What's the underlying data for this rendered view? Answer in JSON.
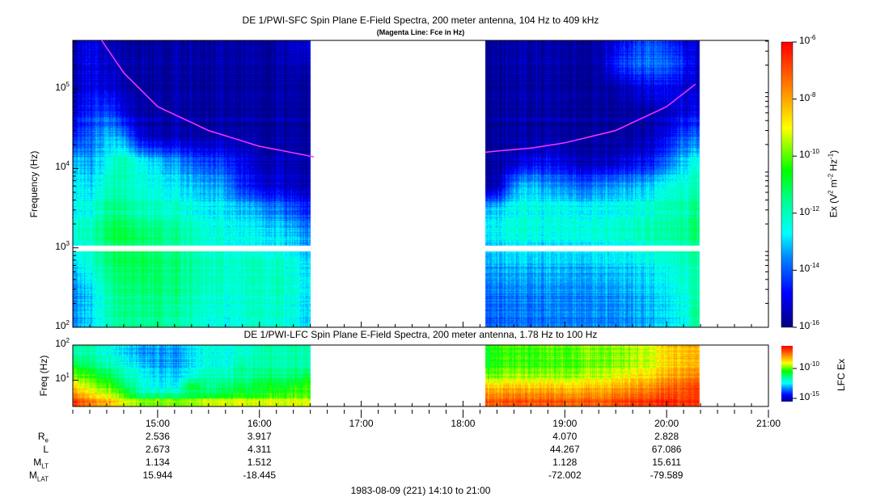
{
  "chart_data": [
    {
      "type": "heatmap",
      "title": "DE 1/PWI-SFC  Spin Plane E-Field Spectra, 200 meter antenna, 104 Hz to 409 kHz",
      "subtitle": "(Magenta Line: Fce in Hz)",
      "ylabel": "Frequency (Hz)",
      "yscale": "log",
      "ylim": [
        100,
        409000
      ],
      "yticks": [
        "10^2",
        "10^3",
        "10^4",
        "10^5"
      ],
      "colorbar": {
        "label": "Ex (V^2 m^-2 Hz^-1)",
        "scale": "log",
        "range": [
          -16,
          -6
        ],
        "ticks": [
          "10^-6",
          "10^-8",
          "10^-10",
          "10^-12",
          "10^-14",
          "10^-16"
        ]
      },
      "data_gaps": [
        [
          "16:32",
          "18:13"
        ],
        [
          "20:19",
          "21:00"
        ]
      ],
      "freq_rows_hz": [
        150,
        300,
        600,
        1500,
        3000,
        6000,
        12000,
        25000,
        50000,
        100000,
        200000,
        400000
      ],
      "segments": [
        {
          "times": [
            "14:10",
            "14:20",
            "14:30",
            "14:40",
            "14:50",
            "15:00",
            "15:10",
            "15:20",
            "15:30",
            "15:40",
            "15:50",
            "16:00",
            "16:10",
            "16:20",
            "16:30"
          ],
          "log10_values": [
            [
              -13.5,
              -13,
              -12,
              -11.5,
              -11.5,
              -11.5,
              -11.8,
              -12,
              -12.3,
              -12.5,
              -12.3,
              -12,
              -12.2,
              -12.5,
              -13
            ],
            [
              -13.5,
              -13,
              -11.8,
              -11.3,
              -11.2,
              -11.3,
              -11.5,
              -11.8,
              -12,
              -12.3,
              -12.2,
              -12,
              -12,
              -12.3,
              -12.8
            ],
            [
              -13,
              -12.5,
              -11.5,
              -11.2,
              -11,
              -11.3,
              -11.5,
              -11.8,
              -12,
              -12.3,
              -12.2,
              -12,
              -12.2,
              -12.5,
              -13
            ],
            [
              -12,
              -12,
              -11,
              -10.8,
              -11,
              -11.3,
              -11.6,
              -11.9,
              -12.2,
              -12.4,
              -12.5,
              -12.6,
              -12.8,
              -13,
              -13.5
            ],
            [
              -12.5,
              -12.5,
              -11.5,
              -11.5,
              -11.8,
              -12,
              -12.2,
              -12.4,
              -12.6,
              -12.8,
              -13,
              -13.2,
              -13.6,
              -14,
              -14.5
            ],
            [
              -12.5,
              -13,
              -12,
              -12,
              -12.2,
              -12.5,
              -12.8,
              -13,
              -13.2,
              -13.5,
              -14.5,
              -15,
              -15.2,
              -15.4,
              -15.5
            ],
            [
              -13,
              -13.5,
              -12.5,
              -11.8,
              -12.5,
              -13,
              -13.5,
              -14,
              -14.2,
              -14.5,
              -15,
              -15.5,
              -15.5,
              -15.6,
              -15.6
            ],
            [
              -14.5,
              -14,
              -13,
              -13.5,
              -15,
              -15.5,
              -15.5,
              -15.6,
              -15.6,
              -15.6,
              -15.6,
              -15.7,
              -15.7,
              -15.7,
              -15.7
            ],
            [
              -15,
              -14.5,
              -14,
              -15,
              -15.5,
              -15.6,
              -15.7,
              -15.7,
              -15.7,
              -15.7,
              -15.7,
              -15.7,
              -15.7,
              -15.7,
              -15.7
            ],
            [
              -15.5,
              -15,
              -15,
              -15.5,
              -15.6,
              -15.7,
              -15.7,
              -15.7,
              -15.7,
              -15.7,
              -15.7,
              -15.7,
              -15.7,
              -15.7,
              -15.7
            ],
            [
              -15.5,
              -15,
              -15.3,
              -15.6,
              -15.5,
              -15.7,
              -15.7,
              -15.7,
              -15.7,
              -15.7,
              -15.7,
              -15.7,
              -15.7,
              -15.6,
              -15.5
            ],
            [
              -15.5,
              -15,
              -15.5,
              -15.7,
              -15.7,
              -15.7,
              -15.7,
              -15.7,
              -15.7,
              -15.7,
              -15.7,
              -15.7,
              -15.7,
              -15.3,
              -15
            ]
          ]
        },
        {
          "times": [
            "18:13",
            "18:20",
            "18:30",
            "18:40",
            "18:50",
            "19:00",
            "19:10",
            "19:20",
            "19:30",
            "19:40",
            "19:50",
            "20:00",
            "20:10",
            "20:19"
          ],
          "log10_values": [
            [
              -13.8,
              -13.8,
              -13.8,
              -13.8,
              -13.7,
              -13.6,
              -13.5,
              -13.5,
              -13.5,
              -13.4,
              -13.2,
              -13,
              -12.5,
              -11.5
            ],
            [
              -13.6,
              -13.6,
              -13.6,
              -13.6,
              -13.5,
              -13.5,
              -13.4,
              -13.4,
              -13.3,
              -13.2,
              -13,
              -12.8,
              -12.3,
              -11.8
            ],
            [
              -13.3,
              -13.3,
              -13.3,
              -13.3,
              -13.3,
              -13.2,
              -13.2,
              -13.1,
              -13,
              -13,
              -12.8,
              -12.6,
              -12.2,
              -12
            ],
            [
              -12.5,
              -12.5,
              -12.3,
              -12.3,
              -12.5,
              -12.3,
              -12.2,
              -12.2,
              -12,
              -12,
              -11.8,
              -11.8,
              -11.5,
              -11.2
            ],
            [
              -12.8,
              -12.8,
              -12.5,
              -12.4,
              -12.5,
              -12.4,
              -12.5,
              -12.5,
              -12.4,
              -12.3,
              -12.2,
              -12,
              -11.8,
              -11.5
            ],
            [
              -15.5,
              -15.5,
              -13.5,
              -13,
              -13.5,
              -13.5,
              -13.8,
              -13.5,
              -13.3,
              -13.2,
              -13,
              -12.5,
              -12.2,
              -12
            ],
            [
              -15.7,
              -15.7,
              -15.5,
              -15,
              -15,
              -15.2,
              -15.5,
              -15.5,
              -15.3,
              -15,
              -14.8,
              -14,
              -13,
              -12.5
            ],
            [
              -15.7,
              -15.7,
              -15.7,
              -15.7,
              -15.7,
              -15.7,
              -15.7,
              -15.7,
              -15.7,
              -15.7,
              -15.5,
              -15,
              -14,
              -14
            ],
            [
              -15.7,
              -15.7,
              -15.7,
              -15.7,
              -15.7,
              -15.7,
              -15.7,
              -15.7,
              -15.7,
              -15.7,
              -15.7,
              -15.5,
              -15,
              -15
            ],
            [
              -15.7,
              -15.7,
              -15.7,
              -15.7,
              -15.7,
              -15.7,
              -15.7,
              -15.7,
              -15.6,
              -15.3,
              -15,
              -15,
              -15.2,
              -15.5
            ],
            [
              -15.7,
              -15.7,
              -15.7,
              -15.7,
              -15.7,
              -15.7,
              -15.7,
              -15.6,
              -14.5,
              -14,
              -13.8,
              -14,
              -14.5,
              -15.5
            ],
            [
              -15.7,
              -15.7,
              -15.7,
              -15.7,
              -15.7,
              -15.7,
              -15.7,
              -15.6,
              -15,
              -14.5,
              -14,
              -14.5,
              -15,
              -15.5
            ]
          ]
        }
      ],
      "fce_line": {
        "color": "#ff33ff",
        "segments": [
          [
            [
              "14:27",
              409000
            ],
            [
              "14:40",
              160000
            ],
            [
              "15:00",
              60000
            ],
            [
              "15:30",
              30000
            ],
            [
              "16:00",
              19000
            ],
            [
              "16:32",
              14000
            ]
          ],
          [
            [
              "18:13",
              16000
            ],
            [
              "18:40",
              18000
            ],
            [
              "19:00",
              21000
            ],
            [
              "19:30",
              30000
            ],
            [
              "20:00",
              60000
            ],
            [
              "20:17",
              115000
            ]
          ]
        ]
      }
    },
    {
      "type": "heatmap",
      "title": "DE 1/PWI-LFC  Spin Plane E-Field Spectra, 200 meter antenna, 1.78 Hz to 100 Hz",
      "ylabel": "Freq (Hz)",
      "yscale": "log",
      "ylim": [
        1.78,
        100
      ],
      "yticks": [
        "10^2",
        "10^1"
      ],
      "colorbar": {
        "label": "LFC Ex",
        "scale": "log",
        "range": [
          -16,
          -6.5
        ],
        "ticks": [
          "10^-10",
          "10^-15"
        ]
      },
      "freq_rows_hz": [
        2.5,
        4,
        7,
        12,
        25,
        60
      ],
      "segments": [
        {
          "times": [
            "14:10",
            "14:20",
            "14:30",
            "14:40",
            "14:50",
            "15:00",
            "15:10",
            "15:20",
            "15:30",
            "15:40",
            "15:50",
            "16:00",
            "16:10",
            "16:20",
            "16:30"
          ],
          "log10_values": [
            [
              -7,
              -8,
              -8.5,
              -9.5,
              -10,
              -10,
              -10,
              -10,
              -9.5,
              -9.5,
              -9.5,
              -9.5,
              -9.5,
              -9.5,
              -9.5
            ],
            [
              -8,
              -9,
              -9.5,
              -10.5,
              -12,
              -12,
              -12,
              -11.5,
              -11.5,
              -11,
              -11,
              -11,
              -10.5,
              -10.5,
              -10.5
            ],
            [
              -9,
              -10,
              -10.5,
              -11.5,
              -12.5,
              -13,
              -13,
              -11,
              -12,
              -11.5,
              -11.5,
              -11,
              -11,
              -11,
              -10.5
            ],
            [
              -10,
              -10.5,
              -11,
              -12,
              -12.5,
              -13,
              -13,
              -12.5,
              -12,
              -12,
              -12,
              -11.5,
              -11.5,
              -11.5,
              -11
            ],
            [
              -11,
              -11.5,
              -12,
              -12.5,
              -13,
              -13.5,
              -13.5,
              -13,
              -12.5,
              -12.5,
              -12,
              -12,
              -12,
              -12,
              -12
            ],
            [
              -12,
              -12,
              -12.5,
              -13,
              -13.5,
              -13.5,
              -13.5,
              -13,
              -12.5,
              -12.5,
              -12.5,
              -12,
              -12,
              -12,
              -12
            ]
          ]
        },
        {
          "times": [
            "18:13",
            "18:20",
            "18:30",
            "18:40",
            "18:50",
            "19:00",
            "19:10",
            "19:20",
            "19:30",
            "19:40",
            "19:50",
            "20:00",
            "20:10",
            "20:19"
          ],
          "log10_values": [
            [
              -7.5,
              -7.5,
              -7.5,
              -7.5,
              -7.5,
              -7.5,
              -7.5,
              -7.5,
              -7.3,
              -7.2,
              -7,
              -7,
              -7,
              -7
            ],
            [
              -8,
              -8,
              -8,
              -8,
              -8,
              -8,
              -8,
              -8,
              -7.8,
              -7.7,
              -7.5,
              -7.3,
              -7.2,
              -7
            ],
            [
              -9,
              -9,
              -9,
              -9,
              -9,
              -9,
              -9,
              -8.8,
              -8.7,
              -8.5,
              -8.3,
              -8,
              -7.5,
              -7.3
            ],
            [
              -10,
              -10,
              -9.8,
              -9.8,
              -9.8,
              -9.8,
              -9.6,
              -9.5,
              -9.3,
              -9,
              -8.8,
              -8.5,
              -8,
              -7.8
            ],
            [
              -11,
              -10.5,
              -10.5,
              -10.5,
              -10.5,
              -10.3,
              -10.3,
              -10,
              -10,
              -9.8,
              -9.5,
              -9,
              -8.5,
              -8.5
            ],
            [
              -11,
              -10.5,
              -10.5,
              -10.5,
              -10.3,
              -10.3,
              -10,
              -10,
              -10,
              -9.8,
              -9.5,
              -9,
              -8.5,
              -8.5
            ]
          ]
        }
      ]
    }
  ],
  "xaxis": {
    "range": [
      "14:10",
      "21:00"
    ],
    "ticks": [
      "15:00",
      "16:00",
      "17:00",
      "18:00",
      "19:00",
      "20:00",
      "21:00"
    ]
  },
  "ephemeris": {
    "columns": [
      "15:00",
      "16:00",
      "19:00",
      "20:00"
    ],
    "rows": [
      {
        "label": "R",
        "sub": "e",
        "values": [
          "2.536",
          "3.917",
          "4.070",
          "2.828"
        ]
      },
      {
        "label": "L",
        "sub": "",
        "values": [
          "2.673",
          "4.311",
          "44.267",
          "67.086"
        ]
      },
      {
        "label": "M",
        "sub": "LT",
        "values": [
          "1.134",
          "1.512",
          "1.128",
          "15.611"
        ]
      },
      {
        "label": "M",
        "sub": "LAT",
        "values": [
          "15.944",
          "-18.445",
          "-72.002",
          "-79.589"
        ]
      }
    ]
  },
  "footer": "1983-08-09 (221) 14:10 to 21:00"
}
